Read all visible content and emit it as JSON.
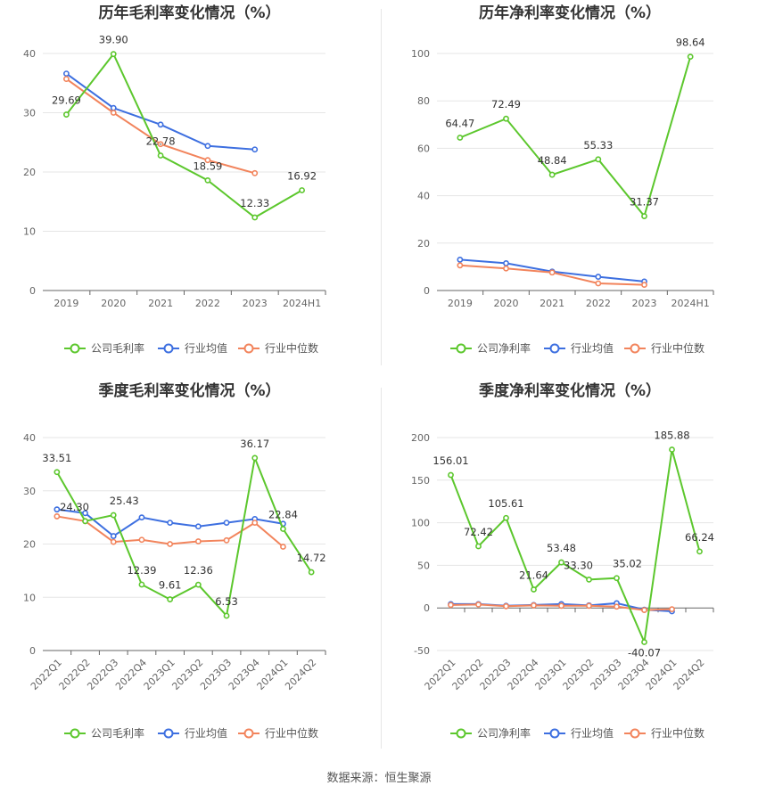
{
  "source_label": "数据来源：恒生聚源",
  "chart_data": [
    {
      "type": "line",
      "title": "历年毛利率变化情况（%）",
      "categories": [
        "2019",
        "2020",
        "2021",
        "2022",
        "2023",
        "2024H1"
      ],
      "ylim": [
        0,
        40
      ],
      "yticks": [
        0,
        10,
        20,
        30,
        40
      ],
      "grid": true,
      "legend_position": "bottom",
      "series": [
        {
          "name": "公司毛利率",
          "color": "#5cc72d",
          "values": [
            29.69,
            39.9,
            22.78,
            18.59,
            12.33,
            16.92
          ],
          "labels": [
            "29.69",
            "39.90",
            "22.78",
            "18.59",
            "12.33",
            "16.92"
          ]
        },
        {
          "name": "行业均值",
          "color": "#3d6fe0",
          "values": [
            36.6,
            30.8,
            28.0,
            24.4,
            23.8,
            null
          ]
        },
        {
          "name": "行业中位数",
          "color": "#f2845c",
          "values": [
            35.7,
            30.0,
            24.7,
            22.0,
            19.8,
            null
          ]
        }
      ]
    },
    {
      "type": "line",
      "title": "历年净利率变化情况（%）",
      "categories": [
        "2019",
        "2020",
        "2021",
        "2022",
        "2023",
        "2024H1"
      ],
      "ylim": [
        0,
        100
      ],
      "yticks": [
        0,
        20,
        40,
        60,
        80,
        100
      ],
      "grid": true,
      "legend_position": "bottom",
      "series": [
        {
          "name": "公司净利率",
          "color": "#5cc72d",
          "values": [
            64.47,
            72.49,
            48.84,
            55.33,
            31.37,
            98.64
          ],
          "labels": [
            "64.47",
            "72.49",
            "48.84",
            "55.33",
            "31.37",
            "98.64"
          ]
        },
        {
          "name": "行业均值",
          "color": "#3d6fe0",
          "values": [
            13.0,
            11.5,
            8.0,
            5.8,
            3.8,
            null
          ]
        },
        {
          "name": "行业中位数",
          "color": "#f2845c",
          "values": [
            10.6,
            9.3,
            7.6,
            3.0,
            2.4,
            null
          ]
        }
      ]
    },
    {
      "type": "line",
      "title": "季度毛利率变化情况（%）",
      "categories": [
        "2022Q1",
        "2022Q2",
        "2022Q3",
        "2022Q4",
        "2023Q1",
        "2023Q2",
        "2023Q3",
        "2023Q4",
        "2024Q1",
        "2024Q2"
      ],
      "ylim": [
        0,
        40
      ],
      "yticks": [
        0,
        10,
        20,
        30,
        40
      ],
      "grid": true,
      "legend_position": "bottom",
      "series": [
        {
          "name": "公司毛利率",
          "color": "#5cc72d",
          "values": [
            33.51,
            24.3,
            25.43,
            12.39,
            9.61,
            12.36,
            6.53,
            36.17,
            22.84,
            14.72
          ],
          "labels": [
            "33.51",
            "24.30",
            "25.43",
            "12.39",
            "9.61",
            "12.36",
            "6.53",
            "36.17",
            "22.84",
            "14.72"
          ]
        },
        {
          "name": "行业均值",
          "color": "#3d6fe0",
          "values": [
            26.5,
            25.8,
            21.5,
            25.0,
            24.0,
            23.3,
            24.0,
            24.7,
            23.8,
            null
          ]
        },
        {
          "name": "行业中位数",
          "color": "#f2845c",
          "values": [
            25.2,
            24.3,
            20.4,
            20.8,
            20.0,
            20.5,
            20.7,
            24.0,
            19.5,
            null
          ]
        }
      ]
    },
    {
      "type": "line",
      "title": "季度净利率变化情况（%）",
      "categories": [
        "2022Q1",
        "2022Q2",
        "2022Q3",
        "2022Q4",
        "2023Q1",
        "2023Q2",
        "2023Q3",
        "2023Q4",
        "2024Q1",
        "2024Q2"
      ],
      "ylim": [
        -50,
        200
      ],
      "yticks": [
        -50,
        0,
        50,
        100,
        150,
        200
      ],
      "grid": true,
      "legend_position": "bottom",
      "series": [
        {
          "name": "公司净利率",
          "color": "#5cc72d",
          "values": [
            156.01,
            72.42,
            105.61,
            21.64,
            53.48,
            33.3,
            35.02,
            -40.07,
            185.88,
            66.24
          ],
          "labels": [
            "156.01",
            "72.42",
            "105.61",
            "21.64",
            "53.48",
            "33.30",
            "35.02",
            "-40.07",
            "185.88",
            "66.24"
          ]
        },
        {
          "name": "行业均值",
          "color": "#3d6fe0",
          "values": [
            4.5,
            4.5,
            2.5,
            3.5,
            4.5,
            3.0,
            5.5,
            -2.0,
            -4.0,
            null
          ]
        },
        {
          "name": "行业中位数",
          "color": "#f2845c",
          "values": [
            3.5,
            4.0,
            2.0,
            3.0,
            2.5,
            2.5,
            1.5,
            -2.5,
            -1.5,
            null
          ]
        }
      ]
    }
  ]
}
